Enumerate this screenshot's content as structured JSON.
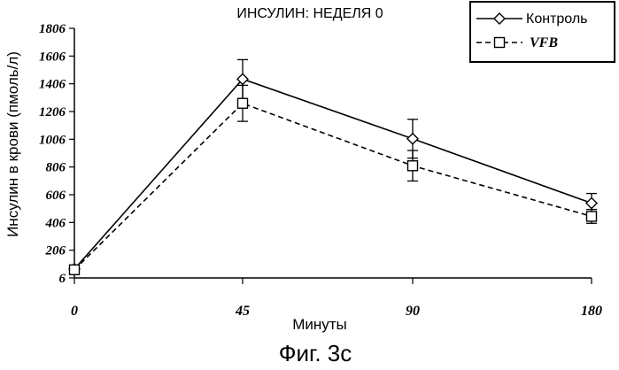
{
  "chart_data": {
    "type": "line",
    "title": "ИНСУЛИН: НЕДЕЛЯ 0",
    "xlabel": "Минуты",
    "ylabel": "Инсулин в крови (пмоль/л)",
    "caption": "Фиг. 3с",
    "x_categories": [
      "0",
      "45",
      "90",
      "180"
    ],
    "y_ticks": [
      "6",
      "206",
      "406",
      "606",
      "806",
      "1006",
      "1206",
      "1406",
      "1606",
      "1806"
    ],
    "ylim": [
      6,
      1806
    ],
    "grid": false,
    "legend_position": "top-right",
    "series": [
      {
        "name": "Контроль",
        "line_style": "solid",
        "marker": "diamond",
        "values": [
          70,
          1440,
          1010,
          545
        ],
        "error": [
          0,
          140,
          140,
          70
        ]
      },
      {
        "name": "VFB",
        "line_style": "dashed",
        "marker": "square",
        "values": [
          65,
          1265,
          815,
          450
        ],
        "error": [
          0,
          130,
          110,
          50
        ]
      }
    ]
  }
}
